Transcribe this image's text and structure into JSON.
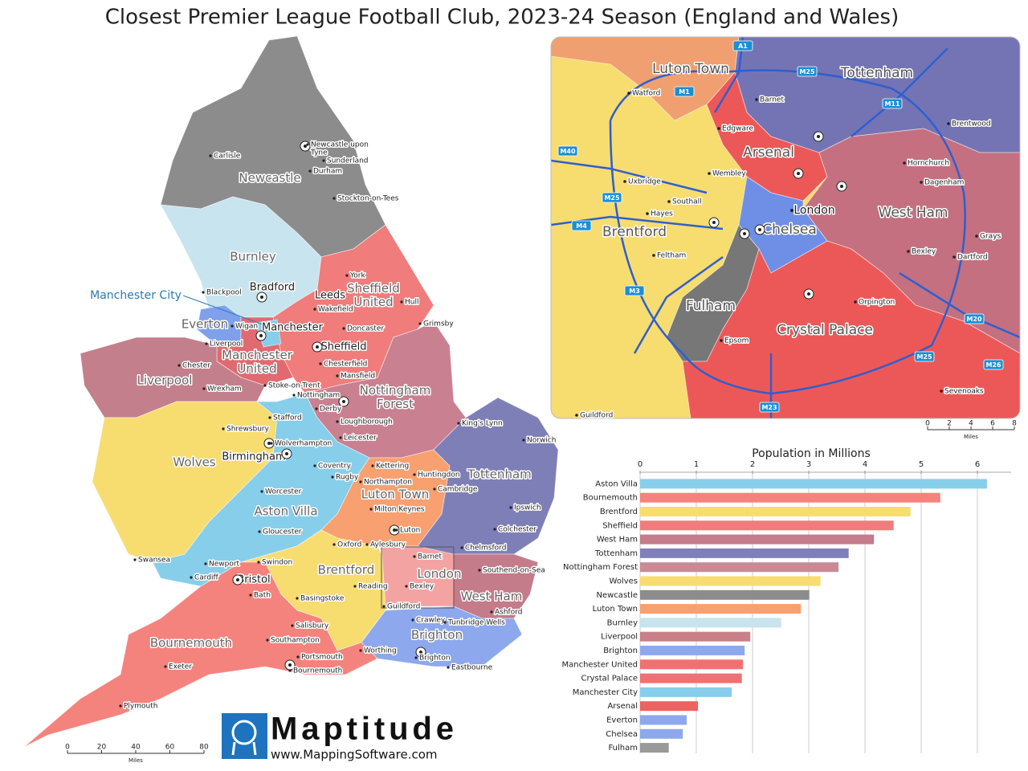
{
  "title": "Closest Premier League Football Club, 2023-24 Season (England and Wales)",
  "map": {
    "clubs": [
      "Newcastle",
      "Burnley",
      "Everton",
      [
        "Manchester",
        "United"
      ],
      "Liverpool",
      [
        "Sheffield",
        "United"
      ],
      [
        "Nottingham",
        "Forest"
      ],
      "Wolves",
      "Aston Villa",
      "Luton Town",
      "Tottenham",
      "Brentford",
      "London",
      "West Ham",
      "Brighton",
      "Bournemouth"
    ],
    "callout": "Manchester City",
    "major_cities": [
      "Bradford",
      "Leeds",
      "Manchester",
      "Sheffield",
      "Birmingham",
      "Bristol"
    ],
    "cities": [
      "Carlisle",
      [
        "Newcastle upon",
        "Tyne"
      ],
      "Sunderland",
      "Durham",
      "Stockton-on-Tees",
      "Blackpool",
      "York",
      "Hull",
      "Wakefield",
      "Grimsby",
      "Wigan",
      "Liverpool",
      "Doncaster",
      "Chester",
      "Chesterfield",
      "Mansfield",
      "Wrexham",
      "Stoke-on-Trent",
      "Nottingham",
      "Derby",
      "Loughborough",
      "King's Lynn",
      "Stafford",
      "Shrewsbury",
      "Norwich",
      "Leicester",
      "Wolverhampton",
      "Kettering",
      "Coventry",
      "Huntingdon",
      "Rugby",
      "Northampton",
      "Cambridge",
      "Worcester",
      "Ipswich",
      "Milton Keynes",
      "Gloucester",
      "Luton",
      "Colchester",
      "Oxford",
      "Aylesbury",
      "Chelmsford",
      "Barnet",
      "Swansea",
      "Swindon",
      "Newport",
      "Southend-on-Sea",
      "Cardiff",
      "Reading",
      "Bexley",
      "Bath",
      "Basingstoke",
      "Guildford",
      "Ashford",
      "Crawley",
      "Tunbridge Wells",
      "Salisbury",
      "Southampton",
      "Worthing",
      "Portsmouth",
      "Brighton",
      "Eastbourne",
      "Exeter",
      "Bournemouth",
      "Plymouth"
    ],
    "scale": {
      "ticks": [
        0,
        20,
        40,
        60,
        80
      ],
      "unit": "Miles"
    }
  },
  "inset": {
    "clubs": [
      "Luton Town",
      "Tottenham",
      "Arsenal",
      "West Ham",
      "Brentford",
      "Chelsea",
      "Fulham",
      "Crystal Palace"
    ],
    "city_london": "London",
    "cities": [
      "Watford",
      "Barnet",
      "Edgware",
      "Brentwood",
      "Hornchurch",
      "Dagenham",
      "Uxbridge",
      "Wembley",
      "Southall",
      "Hayes",
      "Grays",
      "Bexley",
      "Dartford",
      "Feltham",
      "Orpington",
      "Epsom",
      "Sevenoaks",
      "Guildford"
    ],
    "roads": [
      "A1",
      "M25",
      "M1",
      "M11",
      "M40",
      "M25",
      "M4",
      "M3",
      "M20",
      "M25",
      "M26",
      "M23"
    ],
    "scale": {
      "ticks": [
        0,
        2,
        4,
        6,
        8
      ],
      "unit": "Miles"
    }
  },
  "logo": {
    "name": "Maptitude",
    "url": "www.MappingSoftware.com"
  },
  "chart_data": {
    "type": "bar",
    "title": "Population in Millions",
    "categories": [
      "Aston Villa",
      "Bournemouth",
      "Brentford",
      "Sheffield",
      "West Ham",
      "Tottenham",
      "Nottingham Forest",
      "Wolves",
      "Newcastle",
      "Luton Town",
      "Burnley",
      "Liverpool",
      "Brighton",
      "Manchester United",
      "Crystal Palace",
      "Manchester City",
      "Arsenal",
      "Everton",
      "Chelsea",
      "Fulham"
    ],
    "values": [
      6.17,
      5.34,
      4.81,
      4.51,
      4.16,
      3.71,
      3.53,
      3.21,
      3.01,
      2.86,
      2.51,
      1.96,
      1.86,
      1.83,
      1.81,
      1.63,
      1.03,
      0.83,
      0.76,
      0.51
    ],
    "colors": [
      "#87ceeb",
      "#f4837d",
      "#f7dc6f",
      "#f07c7c",
      "#c47b8a",
      "#8080b8",
      "#c98a96",
      "#f7dc6f",
      "#8c8c8c",
      "#f8a070",
      "#c8e4ee",
      "#c98088",
      "#8da8ec",
      "#ef7272",
      "#ef7272",
      "#87ceeb",
      "#ef6262",
      "#8da8ec",
      "#8da8ec",
      "#999999"
    ],
    "xlim": [
      0,
      6.6
    ],
    "xticks": [
      0,
      1,
      2,
      3,
      4,
      5,
      6
    ],
    "grid": true,
    "orientation": "horizontal"
  }
}
